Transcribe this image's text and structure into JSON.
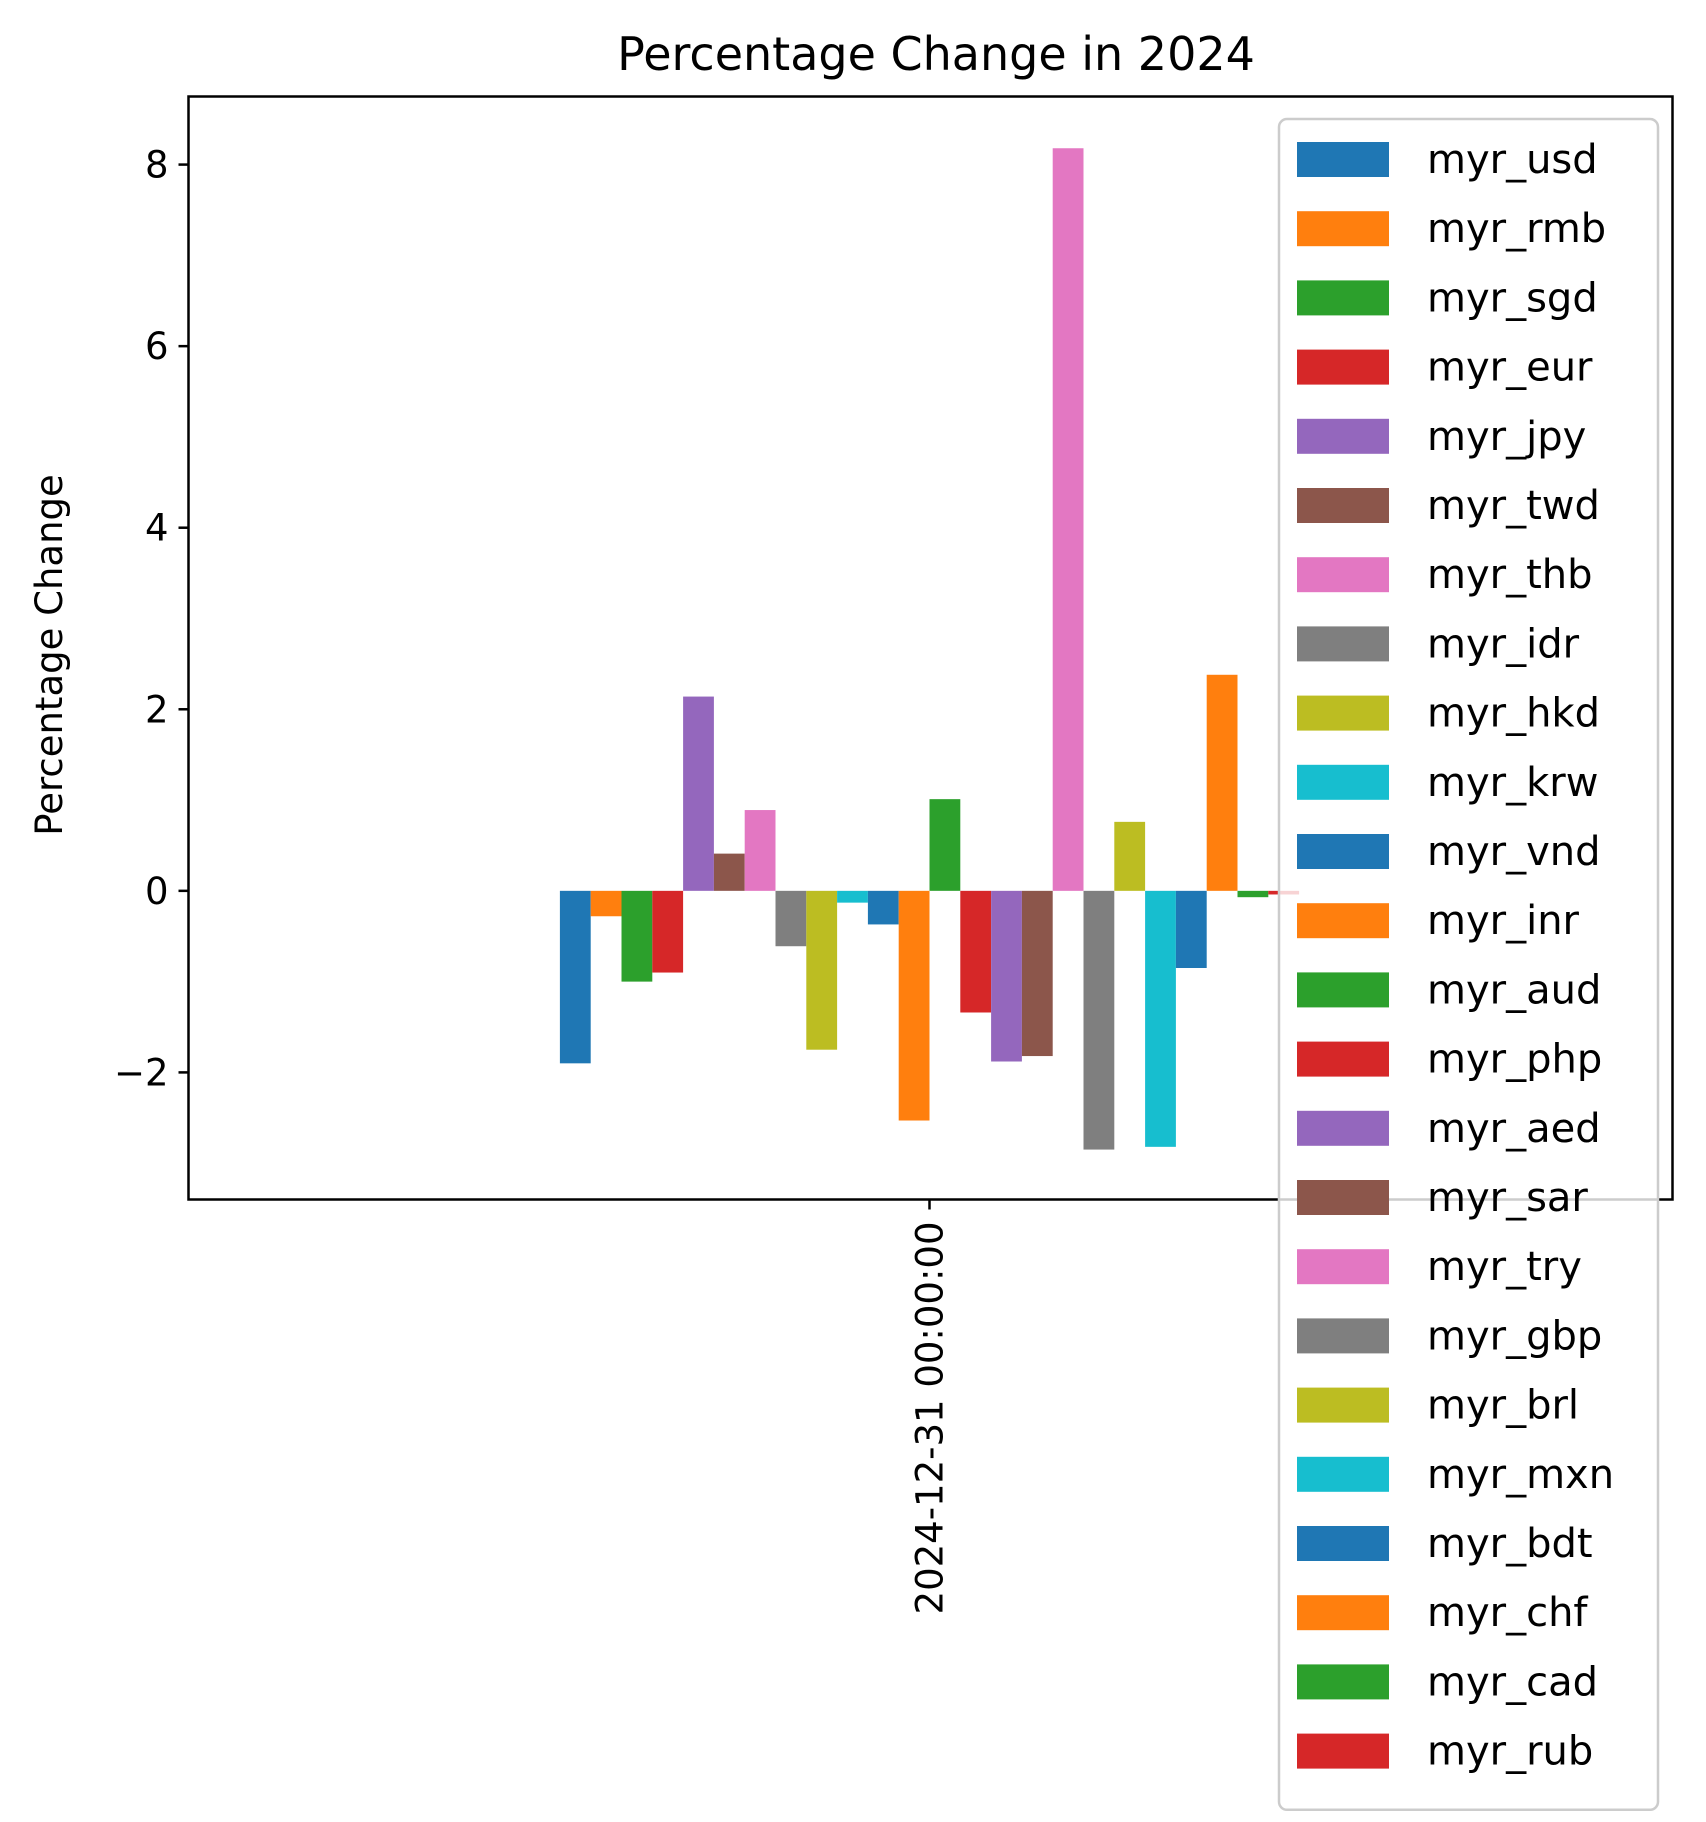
{
  "chart_data": {
    "type": "bar",
    "title": "Percentage Change in 2024",
    "xlabel": "",
    "ylabel": "Percentage Change",
    "categories": [
      "2024-12-31 00:00:00"
    ],
    "ylim": [
      -3.4,
      8.75
    ],
    "yticks": [
      -2,
      0,
      2,
      4,
      6,
      8
    ],
    "ytick_labels": [
      "−2",
      "0",
      "2",
      "4",
      "6",
      "8"
    ],
    "grid": false,
    "legend_position": "right",
    "series": [
      {
        "name": "myr_usd",
        "color": "#1f77b4",
        "values": [
          -1.9
        ]
      },
      {
        "name": "myr_rmb",
        "color": "#ff7f0e",
        "values": [
          -0.28
        ]
      },
      {
        "name": "myr_sgd",
        "color": "#2ca02c",
        "values": [
          -1.0
        ]
      },
      {
        "name": "myr_eur",
        "color": "#d62728",
        "values": [
          -0.9
        ]
      },
      {
        "name": "myr_jpy",
        "color": "#9467bd",
        "values": [
          2.14
        ]
      },
      {
        "name": "myr_twd",
        "color": "#8c564b",
        "values": [
          0.41
        ]
      },
      {
        "name": "myr_thb",
        "color": "#e377c2",
        "values": [
          0.89
        ]
      },
      {
        "name": "myr_idr",
        "color": "#7f7f7f",
        "values": [
          -0.61
        ]
      },
      {
        "name": "myr_hkd",
        "color": "#bcbd22",
        "values": [
          -1.75
        ]
      },
      {
        "name": "myr_krw",
        "color": "#17becf",
        "values": [
          -0.13
        ]
      },
      {
        "name": "myr_vnd",
        "color": "#1f77b4",
        "values": [
          -0.37
        ]
      },
      {
        "name": "myr_inr",
        "color": "#ff7f0e",
        "values": [
          -2.53
        ]
      },
      {
        "name": "myr_aud",
        "color": "#2ca02c",
        "values": [
          1.01
        ]
      },
      {
        "name": "myr_php",
        "color": "#d62728",
        "values": [
          -1.34
        ]
      },
      {
        "name": "myr_aed",
        "color": "#9467bd",
        "values": [
          -1.88
        ]
      },
      {
        "name": "myr_sar",
        "color": "#8c564b",
        "values": [
          -1.82
        ]
      },
      {
        "name": "myr_try",
        "color": "#e377c2",
        "values": [
          8.18
        ]
      },
      {
        "name": "myr_gbp",
        "color": "#7f7f7f",
        "values": [
          -2.85
        ]
      },
      {
        "name": "myr_brl",
        "color": "#bcbd22",
        "values": [
          0.76
        ]
      },
      {
        "name": "myr_mxn",
        "color": "#17becf",
        "values": [
          -2.82
        ]
      },
      {
        "name": "myr_bdt",
        "color": "#1f77b4",
        "values": [
          -0.85
        ]
      },
      {
        "name": "myr_chf",
        "color": "#ff7f0e",
        "values": [
          2.38
        ]
      },
      {
        "name": "myr_cad",
        "color": "#2ca02c",
        "values": [
          -0.07
        ]
      },
      {
        "name": "myr_rub",
        "color": "#d62728",
        "values": [
          -0.04
        ]
      }
    ]
  }
}
